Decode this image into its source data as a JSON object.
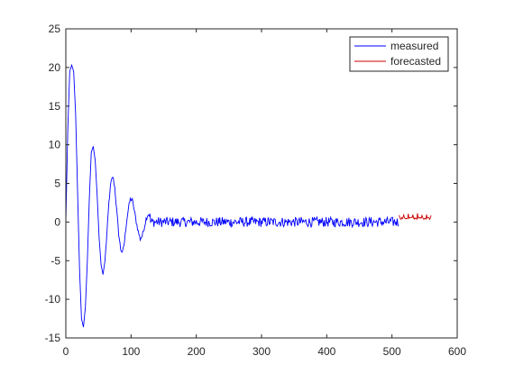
{
  "chart_data": {
    "type": "line",
    "title": "",
    "xlabel": "",
    "ylabel": "",
    "xlim": [
      0,
      600
    ],
    "ylim": [
      -15,
      25
    ],
    "xticks": [
      0,
      100,
      200,
      300,
      400,
      500,
      600
    ],
    "yticks": [
      -15,
      -10,
      -5,
      0,
      5,
      10,
      15,
      20,
      25
    ],
    "grid": false,
    "legend_position": "top-right",
    "series": [
      {
        "name": "measured",
        "color": "#0000ff",
        "x_range": [
          0,
          510
        ],
        "description_points": [
          [
            0,
            0
          ],
          [
            3,
            12
          ],
          [
            6,
            19.5
          ],
          [
            9,
            20.3
          ],
          [
            12,
            19.5
          ],
          [
            15,
            14
          ],
          [
            18,
            4
          ],
          [
            21,
            -6
          ],
          [
            24,
            -12.5
          ],
          [
            27,
            -13.6
          ],
          [
            30,
            -11
          ],
          [
            33,
            -5
          ],
          [
            36,
            3
          ],
          [
            39,
            9
          ],
          [
            42,
            9.8
          ],
          [
            45,
            8
          ],
          [
            48,
            3.5
          ],
          [
            51,
            -2
          ],
          [
            54,
            -5.5
          ],
          [
            57,
            -6.8
          ],
          [
            60,
            -5
          ],
          [
            63,
            -1.5
          ],
          [
            66,
            2.5
          ],
          [
            69,
            5
          ],
          [
            72,
            5.9
          ],
          [
            75,
            4.5
          ],
          [
            78,
            1.5
          ],
          [
            81,
            -1.5
          ],
          [
            84,
            -3.5
          ],
          [
            87,
            -4
          ],
          [
            90,
            -2.5
          ],
          [
            93,
            0
          ],
          [
            96,
            1.8
          ],
          [
            99,
            3
          ],
          [
            102,
            2.8
          ],
          [
            105,
            1.5
          ],
          [
            108,
            0
          ],
          [
            111,
            -1.2
          ],
          [
            114,
            -2.2
          ],
          [
            117,
            -1.8
          ],
          [
            120,
            -0.8
          ],
          [
            123,
            0.4
          ],
          [
            126,
            1.0
          ],
          [
            129,
            0.9
          ]
        ],
        "noise_amplitude": 0.5
      },
      {
        "name": "forecasted",
        "color": "#cc0000",
        "x_range": [
          511,
          560
        ],
        "baseline": 0.5,
        "noise_amplitude": 0.3
      }
    ]
  }
}
